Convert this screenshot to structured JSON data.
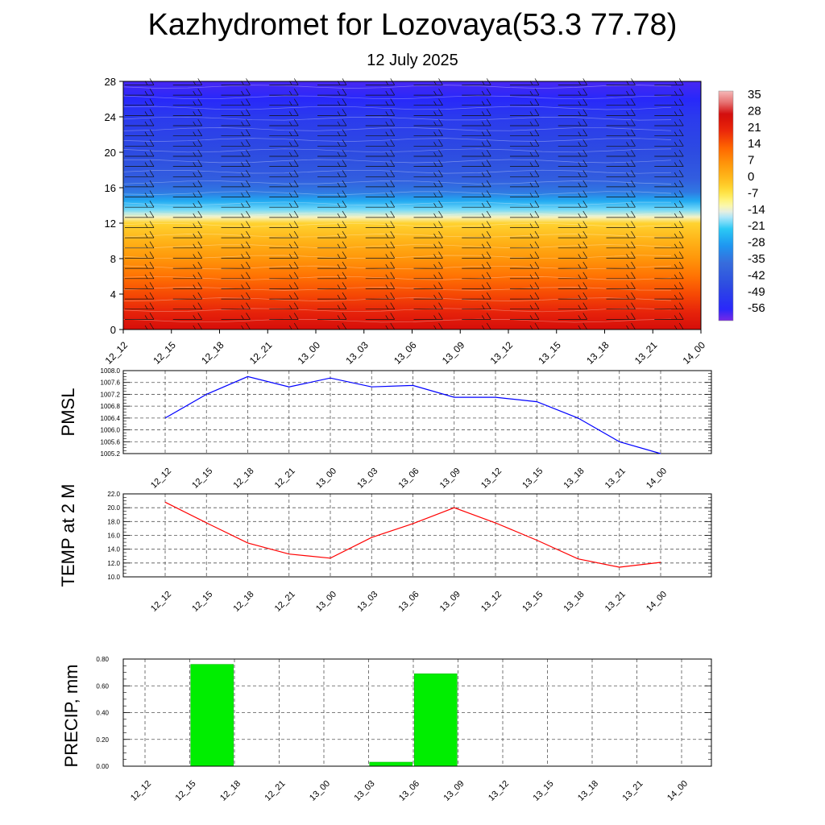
{
  "title": "Kazhydromet for Lozovaya(53.3 77.78)",
  "subtitle": "12 July 2025",
  "chart_data": [
    {
      "type": "heatmap",
      "id": "profile",
      "x_labels": [
        "12_12",
        "12_15",
        "12_18",
        "12_21",
        "13_00",
        "13_03",
        "13_06",
        "13_09",
        "13_12",
        "13_15",
        "13_18",
        "13_21",
        "14_00"
      ],
      "y_ticks": [
        0,
        4,
        8,
        12,
        16,
        20,
        24,
        28
      ],
      "ylim": [
        0,
        28
      ],
      "colorbar": {
        "labels": [
          "35",
          "28",
          "21",
          "14",
          "7",
          "0",
          "-7",
          "-14",
          "-21",
          "-28",
          "-35",
          "-42",
          "-49",
          "-56"
        ],
        "range": [
          -60,
          38
        ]
      },
      "temperature_profile": {
        "levels": [
          0,
          2,
          4,
          6,
          8,
          10,
          12,
          12.7,
          13.5,
          14.5,
          15.5,
          17,
          20,
          24,
          26,
          28
        ],
        "values": [
          27,
          22,
          17,
          12,
          7,
          2,
          -3,
          -12,
          -18,
          -25,
          -33,
          -40,
          -45,
          -50,
          -55,
          -57
        ]
      },
      "has_wind_barbs": true
    },
    {
      "type": "line",
      "id": "pmsl",
      "ylabel": "PMSL",
      "categories": [
        "12_12",
        "12_15",
        "12_18",
        "12_21",
        "13_00",
        "13_03",
        "13_06",
        "13_09",
        "13_12",
        "13_15",
        "13_18",
        "13_21",
        "14_00"
      ],
      "values": [
        1006.4,
        1007.2,
        1007.8,
        1007.45,
        1007.75,
        1007.45,
        1007.5,
        1007.1,
        1007.1,
        1006.95,
        1006.4,
        1005.6,
        1005.2
      ],
      "ylim": [
        1005.2,
        1008.0
      ],
      "y_ticks": [
        "1005.2",
        "1005.6",
        "1006.0",
        "1006.4",
        "1006.8",
        "1007.2",
        "1007.6",
        "1008.0"
      ],
      "color": "#0000ff"
    },
    {
      "type": "line",
      "id": "temp",
      "ylabel": "TEMP at 2 M",
      "categories": [
        "12_12",
        "12_15",
        "12_18",
        "12_21",
        "13_00",
        "13_03",
        "13_06",
        "13_09",
        "13_12",
        "13_15",
        "13_18",
        "13_21",
        "14_00"
      ],
      "values": [
        20.8,
        17.8,
        14.9,
        13.3,
        12.7,
        15.7,
        17.7,
        20.0,
        17.8,
        15.3,
        12.6,
        11.4,
        12.1
      ],
      "ylim": [
        10.0,
        22.0
      ],
      "y_ticks": [
        "10.0",
        "12.0",
        "14.0",
        "16.0",
        "18.0",
        "20.0",
        "22.0"
      ],
      "color": "#ff0000"
    },
    {
      "type": "bar",
      "id": "precip",
      "ylabel": "PRECIP, mm",
      "categories": [
        "12_12",
        "12_15",
        "12_18",
        "12_21",
        "13_00",
        "13_03",
        "13_06",
        "13_09",
        "13_12",
        "13_15",
        "13_18",
        "13_21",
        "14_00"
      ],
      "values": [
        0,
        0.76,
        0,
        0,
        0,
        0.03,
        0.69,
        0,
        0,
        0,
        0,
        0,
        0
      ],
      "ylim": [
        0,
        0.8
      ],
      "y_ticks": [
        "0.00",
        "0.20",
        "0.40",
        "0.60",
        "0.80"
      ],
      "color": "#00ee00"
    }
  ]
}
